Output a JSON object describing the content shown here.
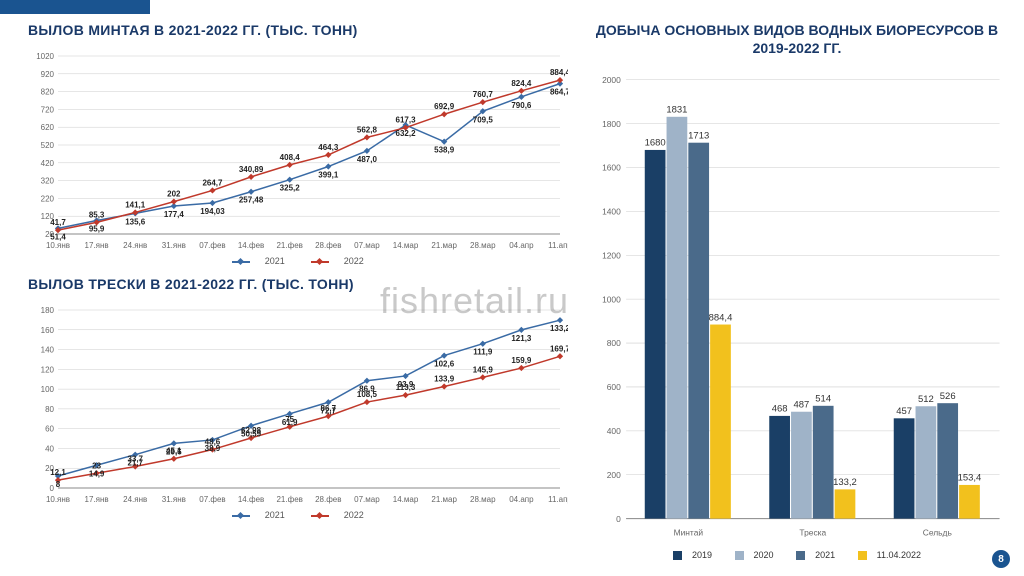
{
  "watermark": "fishretail.ru",
  "page_number": "8",
  "chart1": {
    "title": "ВЫЛОВ МИНТАЯ В 2021-2022 ГГ. (ТЫС. ТОНН)",
    "type": "line",
    "x_labels": [
      "10.янв",
      "17.янв",
      "24.янв",
      "31.янв",
      "07.фев",
      "14.фев",
      "21.фев",
      "28.фев",
      "07.мар",
      "14.мар",
      "21.мар",
      "28.мар",
      "04.апр",
      "11.апр"
    ],
    "y_min": 20,
    "y_max": 1020,
    "y_step": 100,
    "series": [
      {
        "name": "2021",
        "color": "#3a6ba5",
        "values": [
          51.4,
          95.9,
          135.6,
          177.4,
          194.03,
          257.48,
          325.2,
          399.1,
          487.0,
          632.2,
          538.9,
          709.5,
          790.6,
          864.7
        ]
      },
      {
        "name": "2022",
        "color": "#c0392b",
        "values": [
          41.7,
          85.3,
          141.1,
          202,
          264.7,
          340.89,
          408.4,
          464.3,
          562.8,
          617.3,
          692.9,
          760.7,
          824.4,
          884.4
        ]
      }
    ],
    "labels_top": [
      "41,7",
      "85,3",
      "141,1",
      "202",
      "264,7",
      "340,89",
      "408,4",
      "464,3",
      "562,8",
      "617,3",
      "692,9",
      "760,7",
      "824,4",
      "884,4"
    ],
    "labels_bot": [
      "51,4",
      "95,9",
      "135,6",
      "177,4",
      "194,03",
      "257,48",
      "325,2",
      "399,1",
      "487,0",
      "632,2",
      "538,9",
      "709,5",
      "790,6",
      "864,7"
    ]
  },
  "chart2": {
    "title": "ВЫЛОВ ТРЕСКИ В 2021-2022 ГГ. (ТЫС. ТОНН)",
    "type": "line",
    "x_labels": [
      "10.янв",
      "17.янв",
      "24.янв",
      "31.янв",
      "07.фев",
      "14.фев",
      "21.фев",
      "28.фев",
      "07.мар",
      "14.мар",
      "21.мар",
      "28.мар",
      "04.апр",
      "11.апр"
    ],
    "y_min": 0,
    "y_max": 180,
    "y_step": 20,
    "series": [
      {
        "name": "2021",
        "color": "#3a6ba5",
        "values": [
          12.1,
          23,
          33.7,
          45.1,
          48.6,
          62.98,
          75,
          86.7,
          108.5,
          113.3,
          133.9,
          145.9,
          159.9,
          169.7
        ]
      },
      {
        "name": "2022",
        "color": "#c0392b",
        "values": [
          8,
          14.9,
          21.7,
          29.6,
          38.9,
          50.59,
          61.9,
          72.7,
          86.9,
          93.9,
          102.6,
          111.9,
          121.3,
          133.2
        ]
      }
    ],
    "labels_top": [
      "12,1",
      "23",
      "33,7",
      "45,1",
      "48,6",
      "62,98",
      "75",
      "86,7",
      "108,5",
      "113,3",
      "133,9",
      "145,9",
      "159,9",
      "169,7"
    ],
    "labels_bot": [
      "8",
      "14,9",
      "21,7",
      "29,6",
      "38,9",
      "50,59",
      "61,9",
      "72,7",
      "86,9",
      "93,9",
      "102,6",
      "111,9",
      "121,3",
      "133,2"
    ]
  },
  "legend_line": {
    "s1": "2021",
    "s2": "2022"
  },
  "bar": {
    "title": "ДОБЫЧА ОСНОВНЫХ ВИДОВ ВОДНЫХ БИОРЕСУРСОВ В 2019-2022 ГГ.",
    "type": "bar",
    "y_min": 0,
    "y_max": 2000,
    "y_step": 200,
    "categories": [
      "Минтай",
      "Треска",
      "Сельдь"
    ],
    "series": [
      {
        "name": "2019",
        "color": "#1a3f66",
        "values": [
          1680,
          468,
          457
        ]
      },
      {
        "name": "2020",
        "color": "#9fb3c8",
        "values": [
          1831,
          487,
          512
        ]
      },
      {
        "name": "2021",
        "color": "#4a6a8a",
        "values": [
          1713,
          514,
          526
        ]
      },
      {
        "name": "11.04.2022",
        "color": "#f2c11d",
        "values": [
          884.4,
          133.2,
          153.4
        ]
      }
    ],
    "value_labels": [
      [
        "1680",
        "1831",
        "1713",
        "884,4"
      ],
      [
        "468",
        "487",
        "514",
        "133,2"
      ],
      [
        "457",
        "512",
        "526",
        "153,4"
      ]
    ]
  },
  "bar_legend": {
    "l1": "2019",
    "l2": "2020",
    "l3": "2021",
    "l4": "11.04.2022"
  }
}
